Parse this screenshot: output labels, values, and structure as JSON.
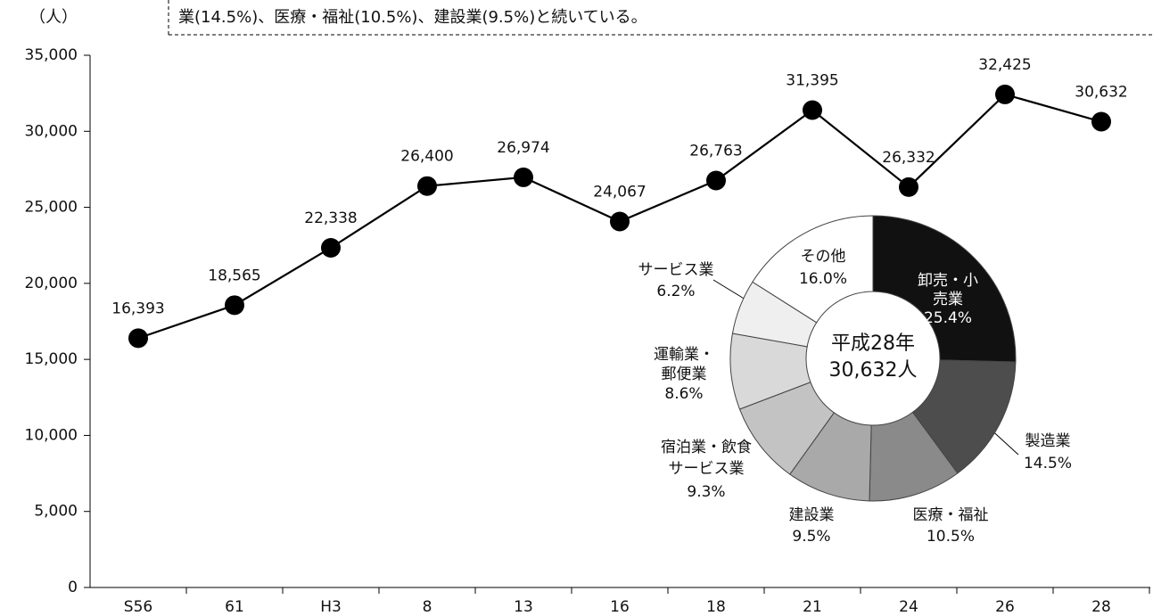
{
  "chart_data": [
    {
      "type": "line",
      "y_label": "（人）",
      "note": "業(14.5%)、医療・福祉(10.5%)、建設業(9.5%)と続いている。",
      "categories": [
        "S56",
        "61",
        "H3",
        "8",
        "13",
        "16",
        "18",
        "21",
        "24",
        "26",
        "28"
      ],
      "values": [
        16393,
        18565,
        22338,
        26400,
        26974,
        24067,
        26763,
        31395,
        26332,
        32425,
        30632
      ],
      "value_labels": [
        "16,393",
        "18,565",
        "22,338",
        "26,400",
        "26,974",
        "24,067",
        "26,763",
        "31,395",
        "26,332",
        "32,425",
        "30,632"
      ],
      "color": "#000000",
      "ylim": [
        0,
        35000
      ],
      "yticks": [
        0,
        {
          "value": 5000,
          "label": "5,000"
        },
        {
          "value": 10000,
          "label": "10,000"
        },
        {
          "value": 15000,
          "label": "15,000"
        },
        {
          "value": 20000,
          "label": "20,000"
        },
        {
          "value": 25000,
          "label": "25,000"
        },
        {
          "value": 30000,
          "label": "30,000"
        },
        {
          "value": 35000,
          "label": "35,000"
        }
      ],
      "grid": false
    },
    {
      "type": "donut",
      "center_text": [
        "平成28年",
        "30,632人"
      ],
      "labels": [
        [
          "卸売・小",
          "売業"
        ],
        [
          "製造業"
        ],
        [
          "医療・福祉"
        ],
        [
          "建設業"
        ],
        [
          "宿泊業・飲食",
          "サービス業"
        ],
        [
          "運輸業・",
          "郵便業"
        ],
        [
          "サービス業"
        ],
        [
          "その他"
        ]
      ],
      "values": [
        25.4,
        14.5,
        10.5,
        9.5,
        9.3,
        8.6,
        6.2,
        16.0
      ],
      "value_labels": [
        "25.4%",
        "14.5%",
        "10.5%",
        "9.5%",
        "9.3%",
        "8.6%",
        "6.2%",
        "16.0%"
      ],
      "colors": [
        "#111111",
        "#4d4d4d",
        "#8a8a8a",
        "#a9a9a9",
        "#c3c3c3",
        "#d9d9d9",
        "#efefef",
        "#ffffff"
      ]
    }
  ]
}
